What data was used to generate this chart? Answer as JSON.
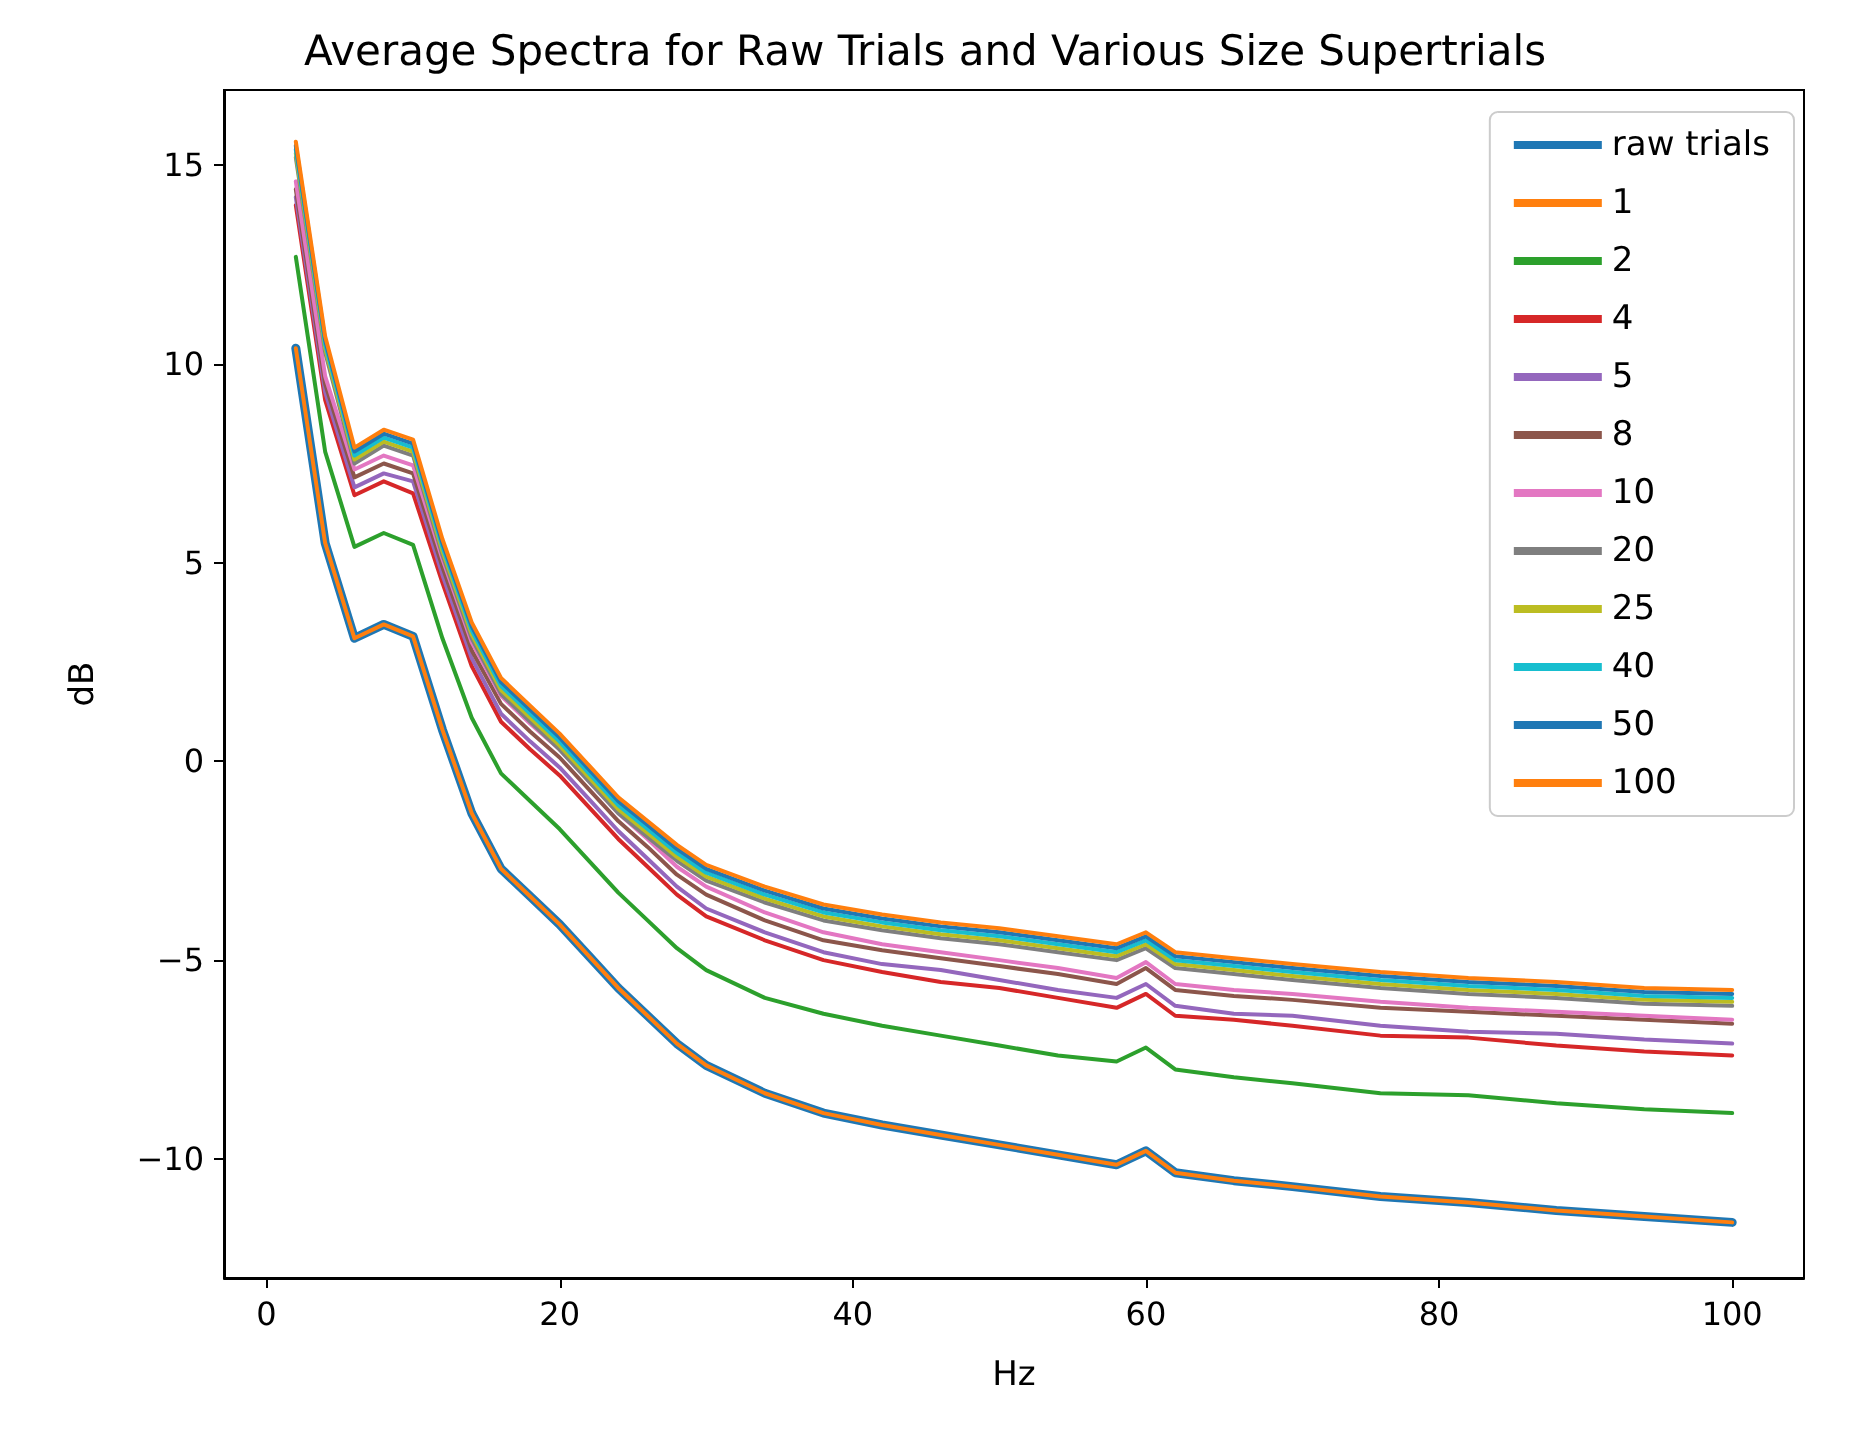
{
  "chart_data": {
    "type": "line",
    "title": "Average Spectra for Raw Trials and Various Size Supertrials",
    "xlabel": "Hz",
    "ylabel": "dB",
    "x": [
      2,
      4,
      6,
      8,
      10,
      12,
      14,
      16,
      18,
      20,
      22,
      24,
      26,
      28,
      30,
      34,
      38,
      42,
      46,
      50,
      54,
      58,
      60,
      62,
      66,
      70,
      76,
      82,
      88,
      94,
      100
    ],
    "xlim": [
      -2.9,
      104.9
    ],
    "xticks": [
      0,
      20,
      40,
      60,
      80,
      100
    ],
    "ylim": [
      -13,
      16.9
    ],
    "yticks": [
      -10,
      -5,
      0,
      5,
      10,
      15
    ],
    "grid": false,
    "legend": "top right",
    "marker": "none",
    "line_style": "solid",
    "series": [
      {
        "name": "raw trials",
        "color": "#1f77b4",
        "values": [
          10.4,
          5.5,
          3.1,
          3.45,
          3.15,
          0.8,
          -1.3,
          -2.7,
          -3.4,
          -4.1,
          -4.9,
          -5.7,
          -6.4,
          -7.1,
          -7.65,
          -8.35,
          -8.85,
          -9.15,
          -9.4,
          -9.65,
          -9.9,
          -10.15,
          -9.8,
          -10.35,
          -10.55,
          -10.7,
          -10.95,
          -11.1,
          -11.3,
          -11.45,
          -11.6
        ]
      },
      {
        "name": "1",
        "color": "#ff7f0e",
        "values": [
          10.4,
          5.5,
          3.1,
          3.45,
          3.15,
          0.8,
          -1.3,
          -2.7,
          -3.4,
          -4.1,
          -4.9,
          -5.7,
          -6.4,
          -7.1,
          -7.65,
          -8.35,
          -8.85,
          -9.15,
          -9.4,
          -9.65,
          -9.9,
          -10.15,
          -9.8,
          -10.35,
          -10.55,
          -10.7,
          -10.95,
          -11.1,
          -11.3,
          -11.45,
          -11.6
        ]
      },
      {
        "name": "2",
        "color": "#2ca02c",
        "values": [
          12.7,
          7.8,
          5.4,
          5.75,
          5.45,
          3.1,
          1.1,
          -0.3,
          -1.0,
          -1.7,
          -2.5,
          -3.3,
          -4.0,
          -4.7,
          -5.25,
          -5.95,
          -6.35,
          -6.65,
          -6.9,
          -7.15,
          -7.4,
          -7.55,
          -7.2,
          -7.75,
          -7.95,
          -8.1,
          -8.35,
          -8.4,
          -8.6,
          -8.75,
          -8.85
        ]
      },
      {
        "name": "4",
        "color": "#d62728",
        "values": [
          14.0,
          9.1,
          6.7,
          7.05,
          6.75,
          4.5,
          2.4,
          1.0,
          0.3,
          -0.35,
          -1.15,
          -1.95,
          -2.65,
          -3.35,
          -3.9,
          -4.5,
          -5.0,
          -5.3,
          -5.55,
          -5.7,
          -5.95,
          -6.2,
          -5.85,
          -6.4,
          -6.5,
          -6.65,
          -6.9,
          -6.95,
          -7.15,
          -7.3,
          -7.4
        ]
      },
      {
        "name": "5",
        "color": "#9467bd",
        "values": [
          14.2,
          9.3,
          6.9,
          7.25,
          7.05,
          4.7,
          2.6,
          1.2,
          0.5,
          -0.15,
          -0.95,
          -1.75,
          -2.45,
          -3.15,
          -3.7,
          -4.3,
          -4.8,
          -5.1,
          -5.25,
          -5.5,
          -5.75,
          -5.95,
          -5.6,
          -6.15,
          -6.35,
          -6.4,
          -6.65,
          -6.8,
          -6.85,
          -7.0,
          -7.1
        ]
      },
      {
        "name": "8",
        "color": "#8c564b",
        "values": [
          14.4,
          9.5,
          7.15,
          7.5,
          7.25,
          4.9,
          2.8,
          1.45,
          0.75,
          0.1,
          -0.7,
          -1.5,
          -2.15,
          -2.85,
          -3.35,
          -4.0,
          -4.5,
          -4.75,
          -4.95,
          -5.15,
          -5.35,
          -5.6,
          -5.2,
          -5.75,
          -5.9,
          -6.0,
          -6.2,
          -6.3,
          -6.4,
          -6.5,
          -6.6
        ]
      },
      {
        "name": "10",
        "color": "#e377c2",
        "values": [
          14.6,
          9.7,
          7.35,
          7.7,
          7.45,
          5.1,
          3.0,
          1.65,
          0.95,
          0.3,
          -0.5,
          -1.3,
          -1.95,
          -2.65,
          -3.15,
          -3.8,
          -4.3,
          -4.6,
          -4.8,
          -5.0,
          -5.2,
          -5.45,
          -5.05,
          -5.6,
          -5.75,
          -5.85,
          -6.05,
          -6.2,
          -6.3,
          -6.4,
          -6.5
        ]
      },
      {
        "name": "20",
        "color": "#7f7f7f",
        "values": [
          15.2,
          10.3,
          7.5,
          7.95,
          7.7,
          5.2,
          3.1,
          1.7,
          1.0,
          0.3,
          -0.5,
          -1.3,
          -1.9,
          -2.5,
          -3.0,
          -3.55,
          -4.0,
          -4.25,
          -4.45,
          -4.6,
          -4.8,
          -5.0,
          -4.7,
          -5.2,
          -5.35,
          -5.5,
          -5.7,
          -5.85,
          -5.95,
          -6.1,
          -6.15
        ]
      },
      {
        "name": "25",
        "color": "#bcbd22",
        "values": [
          15.3,
          10.4,
          7.6,
          8.05,
          7.8,
          5.3,
          3.2,
          1.8,
          1.1,
          0.4,
          -0.4,
          -1.2,
          -1.8,
          -2.4,
          -2.9,
          -3.45,
          -3.9,
          -4.15,
          -4.35,
          -4.5,
          -4.7,
          -4.9,
          -4.6,
          -5.1,
          -5.25,
          -5.4,
          -5.6,
          -5.75,
          -5.85,
          -6.0,
          -6.05
        ]
      },
      {
        "name": "40",
        "color": "#17becf",
        "values": [
          15.4,
          10.5,
          7.7,
          8.15,
          7.9,
          5.4,
          3.3,
          1.9,
          1.2,
          0.5,
          -0.3,
          -1.1,
          -1.7,
          -2.3,
          -2.8,
          -3.35,
          -3.8,
          -4.05,
          -4.25,
          -4.4,
          -4.6,
          -4.8,
          -4.5,
          -5.0,
          -5.15,
          -5.3,
          -5.5,
          -5.65,
          -5.75,
          -5.9,
          -5.95
        ]
      },
      {
        "name": "50",
        "color": "#1f77b4",
        "values": [
          15.5,
          10.6,
          7.8,
          8.25,
          8.0,
          5.5,
          3.4,
          2.0,
          1.3,
          0.6,
          -0.2,
          -1.0,
          -1.6,
          -2.2,
          -2.7,
          -3.25,
          -3.7,
          -3.95,
          -4.15,
          -4.3,
          -4.5,
          -4.7,
          -4.4,
          -4.9,
          -5.05,
          -5.2,
          -5.4,
          -5.55,
          -5.65,
          -5.8,
          -5.85
        ]
      },
      {
        "name": "100",
        "color": "#ff7f0e",
        "values": [
          15.6,
          10.7,
          7.9,
          8.35,
          8.1,
          5.6,
          3.5,
          2.1,
          1.4,
          0.7,
          -0.1,
          -0.9,
          -1.5,
          -2.1,
          -2.6,
          -3.15,
          -3.6,
          -3.85,
          -4.05,
          -4.2,
          -4.4,
          -4.6,
          -4.3,
          -4.8,
          -4.95,
          -5.1,
          -5.3,
          -5.45,
          -5.55,
          -5.7,
          -5.75
        ]
      }
    ]
  }
}
